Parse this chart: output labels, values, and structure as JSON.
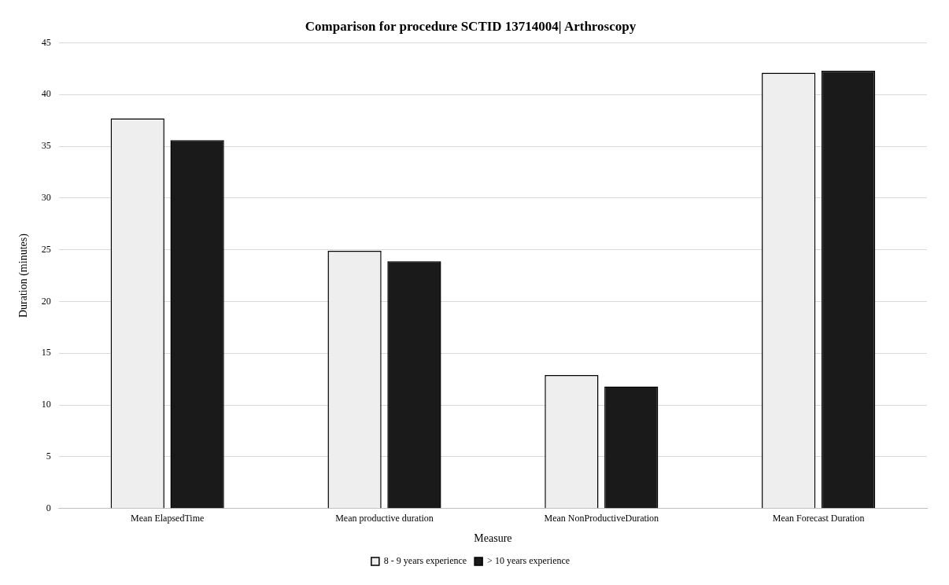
{
  "chart_data": {
    "type": "bar",
    "title": "Comparison for procedure SCTID 13714004| Arthroscopy",
    "xlabel": "Measure",
    "ylabel": "Duration (minutes)",
    "categories": [
      "Mean ElapsedTime",
      "Mean productive duration",
      "Mean NonProductiveDuration",
      "Mean Forecast Duration"
    ],
    "series": [
      {
        "name": "8 - 9 years experience",
        "color": "#eeeeee",
        "values": [
          37.7,
          24.9,
          12.9,
          42.1
        ]
      },
      {
        "name": "> 10 years experience",
        "color": "#1a1a1a",
        "values": [
          35.6,
          23.9,
          11.8,
          42.3
        ]
      }
    ],
    "ylim": [
      0,
      45
    ],
    "yticks": [
      0,
      5,
      10,
      15,
      20,
      25,
      30,
      35,
      40,
      45
    ],
    "grid": "y",
    "legend": "bottom"
  }
}
